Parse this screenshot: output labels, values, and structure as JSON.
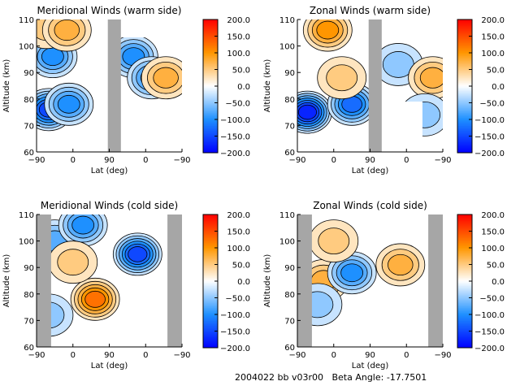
{
  "footer": {
    "text": "2004022 bb v03r00   Beta Angle: -17.7501"
  },
  "colors": {
    "gray_mask": "#a6a6a6",
    "frame": "#000000"
  },
  "chart_data": [
    {
      "type": "heatmap",
      "title": "Meridional Winds (warm side)",
      "xlabel": "Lat (deg)",
      "ylabel": "Altitude (km)",
      "xticks": [
        "-90",
        "0",
        "90",
        "0",
        "-90"
      ],
      "yticks": [
        "60",
        "70",
        "80",
        "90",
        "100",
        "110"
      ],
      "ylim": [
        60,
        110
      ],
      "colorbar": {
        "range": [
          -200,
          200
        ],
        "ticks": [
          "200.0",
          "150.0",
          "100.0",
          "50.0",
          "0.0",
          "-50.0",
          "-100.0",
          "-150.0",
          "-200.0"
        ]
      },
      "masked_lat_segment": "between first 90 tick region (approx 50 to 120 on axis)",
      "features": [
        {
          "lat": -60,
          "alt": 76,
          "value": -150
        },
        {
          "lat": -50,
          "alt": 96,
          "value": -110
        },
        {
          "lat": -65,
          "alt": 107,
          "value": 60
        },
        {
          "lat": -15,
          "alt": 106,
          "value": 80
        },
        {
          "lat": -10,
          "alt": 78,
          "value": -90
        },
        {
          "lat": 150,
          "alt": 96,
          "value": -100
        },
        {
          "lat": 195,
          "alt": 88,
          "value": -90
        },
        {
          "lat": 230,
          "alt": 88,
          "value": 80
        }
      ]
    },
    {
      "type": "heatmap",
      "title": "Zonal Winds (warm side)",
      "xlabel": "Lat (deg)",
      "ylabel": "Altitude (km)",
      "xticks": [
        "-90",
        "0",
        "90",
        "0",
        "-90"
      ],
      "yticks": [
        "60",
        "70",
        "80",
        "90",
        "100",
        "110"
      ],
      "ylim": [
        60,
        110
      ],
      "colorbar": {
        "range": [
          -200,
          200
        ],
        "ticks": [
          "200.0",
          "150.0",
          "100.0",
          "50.0",
          "0.0",
          "-50.0",
          "-100.0",
          "-150.0",
          "-200.0"
        ]
      },
      "features": [
        {
          "lat": -65,
          "alt": 75,
          "value": -170
        },
        {
          "lat": 45,
          "alt": 78,
          "value": -120
        },
        {
          "lat": -15,
          "alt": 106,
          "value": 90
        },
        {
          "lat": 20,
          "alt": 88,
          "value": 60
        },
        {
          "lat": 160,
          "alt": 93,
          "value": -50
        },
        {
          "lat": 245,
          "alt": 88,
          "value": 80
        },
        {
          "lat": 225,
          "alt": 74,
          "value": -40
        }
      ]
    },
    {
      "type": "heatmap",
      "title": "Meridional Winds (cold side)",
      "xlabel": "Lat (deg)",
      "ylabel": "Altitude (km)",
      "xticks": [
        "-90",
        "0",
        "90",
        "0",
        "-90"
      ],
      "yticks": [
        "60",
        "70",
        "80",
        "90",
        "100",
        "110"
      ],
      "ylim": [
        60,
        110
      ],
      "colorbar": {
        "range": [
          -200,
          200
        ],
        "ticks": [
          "200.0",
          "150.0",
          "100.0",
          "50.0",
          "0.0",
          "-50.0",
          "-100.0",
          "-150.0",
          "-200.0"
        ]
      },
      "features": [
        {
          "lat": 55,
          "alt": 78,
          "value": 130
        },
        {
          "lat": -45,
          "alt": 100,
          "value": -80
        },
        {
          "lat": 25,
          "alt": 106,
          "value": -90
        },
        {
          "lat": 160,
          "alt": 95,
          "value": -160
        },
        {
          "lat": 0,
          "alt": 92,
          "value": 40
        },
        {
          "lat": -60,
          "alt": 72,
          "value": -40
        }
      ]
    },
    {
      "type": "heatmap",
      "title": "Zonal Winds (cold side)",
      "xlabel": "Lat (deg)",
      "ylabel": "Altitude (km)",
      "xticks": [
        "-90",
        "0",
        "90",
        "0",
        "-90"
      ],
      "yticks": [
        "60",
        "70",
        "80",
        "90",
        "100",
        "110"
      ],
      "ylim": [
        60,
        110
      ],
      "colorbar": {
        "range": [
          -200,
          200
        ],
        "ticks": [
          "200.0",
          "150.0",
          "100.0",
          "50.0",
          "0.0",
          "-50.0",
          "-100.0",
          "-150.0",
          "-200.0"
        ]
      },
      "features": [
        {
          "lat": -85,
          "alt": 81,
          "value": 120
        },
        {
          "lat": -25,
          "alt": 85,
          "value": 80
        },
        {
          "lat": 45,
          "alt": 88,
          "value": -100
        },
        {
          "lat": 165,
          "alt": 91,
          "value": 80
        },
        {
          "lat": 0,
          "alt": 100,
          "value": 40
        },
        {
          "lat": -40,
          "alt": 76,
          "value": -60
        }
      ]
    }
  ]
}
